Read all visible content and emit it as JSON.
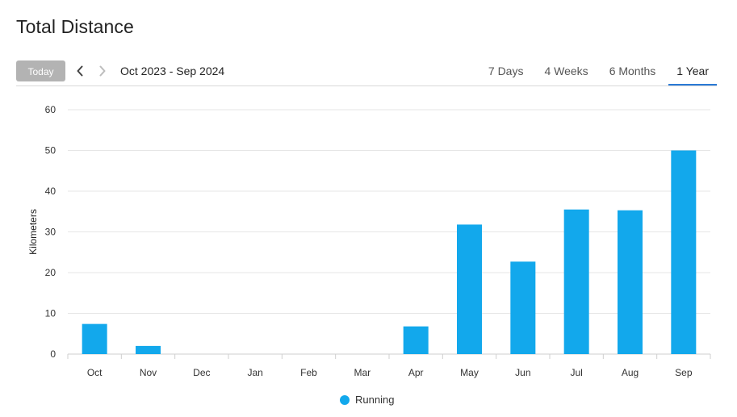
{
  "page": {
    "title": "Total Distance"
  },
  "toolbar": {
    "today_label": "Today",
    "date_range": "Oct 2023 - Sep 2024",
    "tabs": [
      {
        "label": "7 Days",
        "active": false
      },
      {
        "label": "4 Weeks",
        "active": false
      },
      {
        "label": "6 Months",
        "active": false
      },
      {
        "label": "1 Year",
        "active": true
      }
    ]
  },
  "colors": {
    "bar": "#12a8ec",
    "grid": "#e6e6e6",
    "accent": "#2a7ad6",
    "today_bg": "#b3b3b3"
  },
  "chart_data": {
    "type": "bar",
    "categories": [
      "Oct",
      "Nov",
      "Dec",
      "Jan",
      "Feb",
      "Mar",
      "Apr",
      "May",
      "Jun",
      "Jul",
      "Aug",
      "Sep"
    ],
    "series": [
      {
        "name": "Running",
        "values": [
          7.4,
          2.0,
          0,
          0,
          0,
          0,
          6.8,
          31.8,
          22.7,
          35.5,
          35.3,
          50.0
        ]
      }
    ],
    "xlabel": "",
    "ylabel": "Kilometers",
    "ylim": [
      0,
      60
    ],
    "yticks": [
      0,
      10,
      20,
      30,
      40,
      50,
      60
    ],
    "grid": true,
    "legend_position": "bottom-center"
  }
}
